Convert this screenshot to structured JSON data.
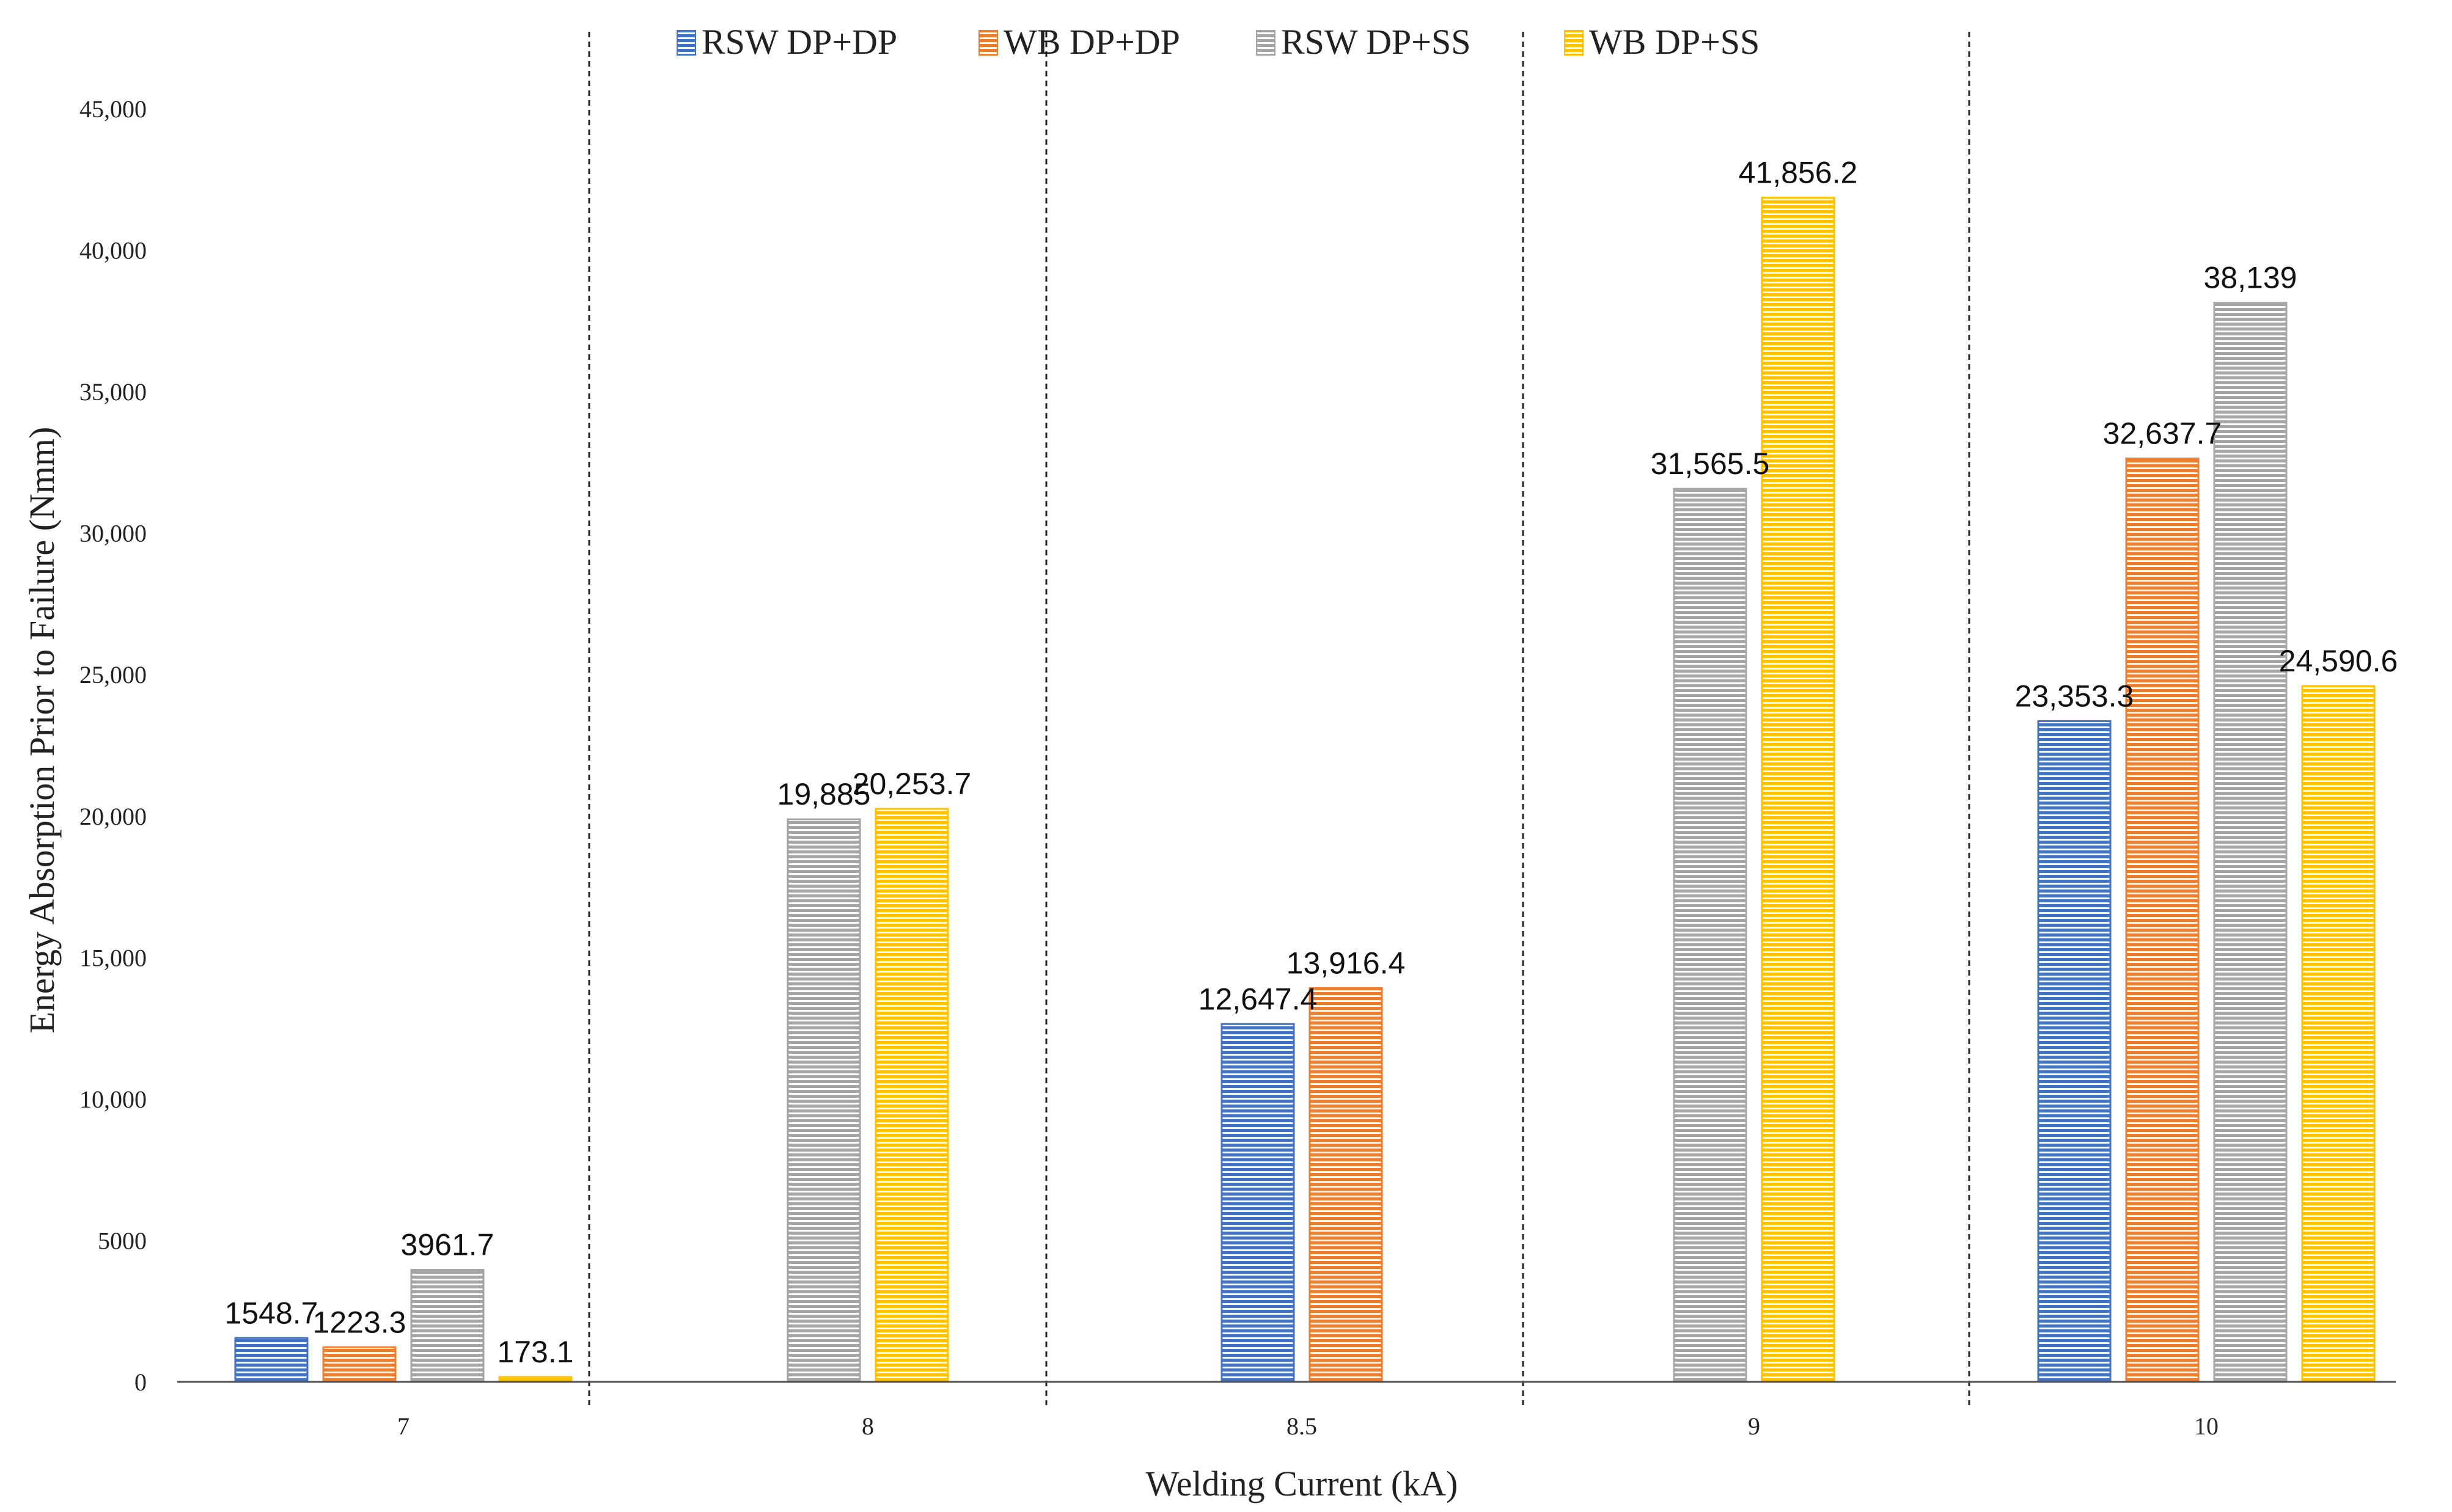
{
  "chart_data": {
    "type": "bar",
    "title": "",
    "xlabel": "Welding Current (kA)",
    "ylabel": "Energy Absorption Prior to Failure (Nmm)",
    "ylim": [
      0,
      45000
    ],
    "yticks": [
      0,
      5000,
      10000,
      15000,
      20000,
      25000,
      30000,
      35000,
      40000,
      45000
    ],
    "ytick_labels": [
      "0",
      "5000",
      "10,000",
      "15,000",
      "20,000",
      "25,000",
      "30,000",
      "35,000",
      "40,000",
      "45,000"
    ],
    "grid": false,
    "legend_position": "top-center",
    "categories": [
      "7",
      "8",
      "8.5",
      "9",
      "10"
    ],
    "series": [
      {
        "name": "RSW DP+DP",
        "color": "#4472C4",
        "values": [
          1548.7,
          null,
          12647.4,
          null,
          23353.3
        ],
        "labels": [
          "1548.7",
          null,
          "12,647.4",
          null,
          "23,353.3"
        ]
      },
      {
        "name": "WB DP+DP",
        "color": "#ED7D31",
        "values": [
          1223.3,
          null,
          13916.4,
          null,
          32637.7
        ],
        "labels": [
          "1223.3",
          null,
          "13,916.4",
          null,
          "32,637.7"
        ]
      },
      {
        "name": "RSW DP+SS",
        "color": "#A5A5A5",
        "values": [
          3961.7,
          19885,
          null,
          31565.5,
          38139
        ],
        "labels": [
          "3961.7",
          "19,885",
          null,
          "31,565.5",
          "38,139"
        ]
      },
      {
        "name": "WB DP+SS",
        "color": "#FFC000",
        "values": [
          173.1,
          20253.7,
          null,
          41856.2,
          24590.6
        ],
        "labels": [
          "173.1",
          "20,253.7",
          null,
          "41,856.2",
          "24,590.6"
        ]
      }
    ]
  }
}
